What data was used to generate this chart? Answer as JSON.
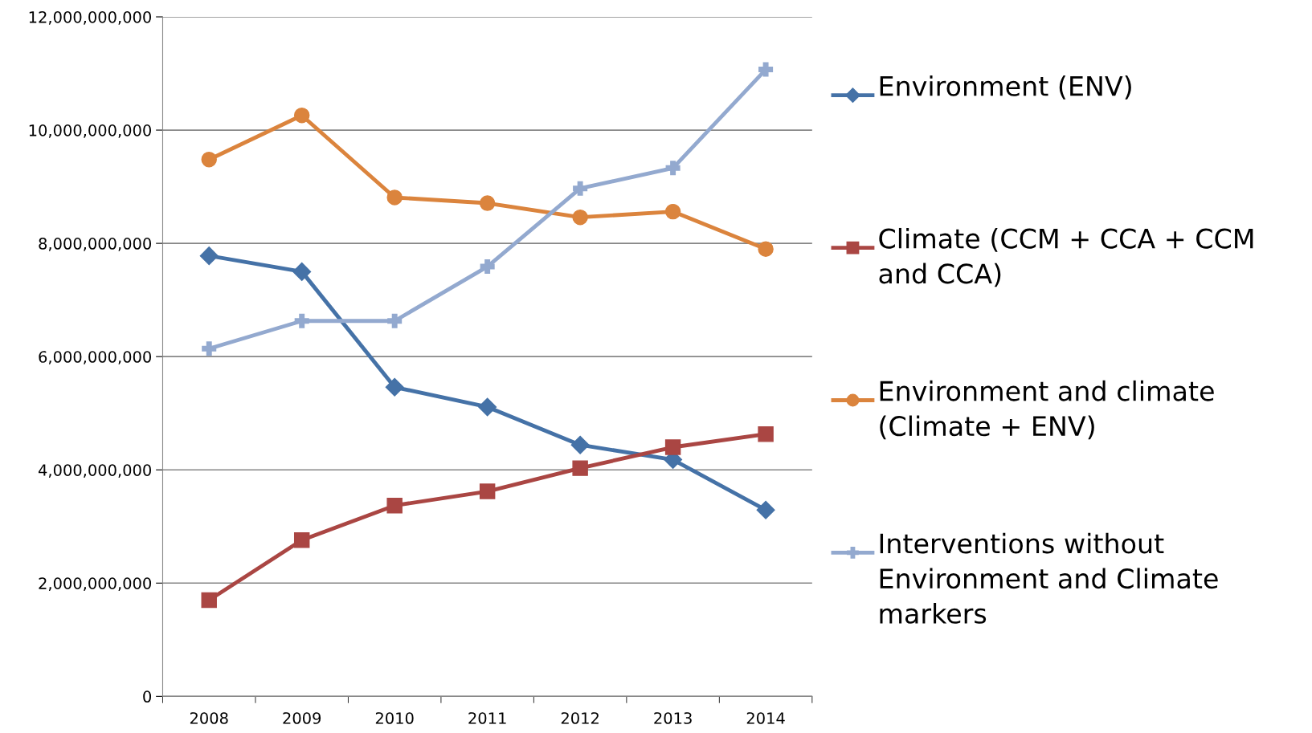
{
  "chart_data": {
    "type": "line",
    "categories": [
      "2008",
      "2009",
      "2010",
      "2011",
      "2012",
      "2013",
      "2014"
    ],
    "series": [
      {
        "name": "Environment (ENV)",
        "color": "#4572a7",
        "marker": "diamond",
        "values": [
          7780000000.0,
          7500000000.0,
          5460000000.0,
          5110000000.0,
          4440000000.0,
          4180000000.0,
          3290000000.0
        ]
      },
      {
        "name": "Climate (CCM + CCA + CCM and CCA)",
        "color": "#aa4643",
        "marker": "square",
        "values": [
          1700000000.0,
          2760000000.0,
          3370000000.0,
          3620000000.0,
          4030000000.0,
          4400000000.0,
          4630000000.0
        ]
      },
      {
        "name": "Environment and climate (Climate + ENV)",
        "color": "#db843d",
        "marker": "circle",
        "values": [
          9480000000.0,
          10260000000.0,
          8810000000.0,
          8710000000.0,
          8460000000.0,
          8560000000.0,
          7900000000.0
        ]
      },
      {
        "name": "Interventions without Environment and Climate markers",
        "color": "#93a9cf",
        "marker": "cross",
        "values": [
          6140000000.0,
          6630000000.0,
          6630000000.0,
          7590000000.0,
          8970000000.0,
          9330000000.0,
          11070000000.0
        ]
      }
    ],
    "ylim": [
      0,
      12000000000
    ],
    "yticks": [
      0,
      {
        "value": 2000000000,
        "label": "2,000,000,000"
      },
      {
        "value": 4000000000,
        "label": "4,000,000,000"
      },
      {
        "value": 6000000000,
        "label": "6,000,000,000"
      },
      {
        "value": 8000000000,
        "label": "8,000,000,000"
      },
      {
        "value": 10000000000,
        "label": "10,000,000,000"
      },
      {
        "value": 12000000000,
        "label": "12,000,000,000"
      }
    ],
    "grid": "y",
    "legend": "right",
    "line_style": "solid"
  }
}
